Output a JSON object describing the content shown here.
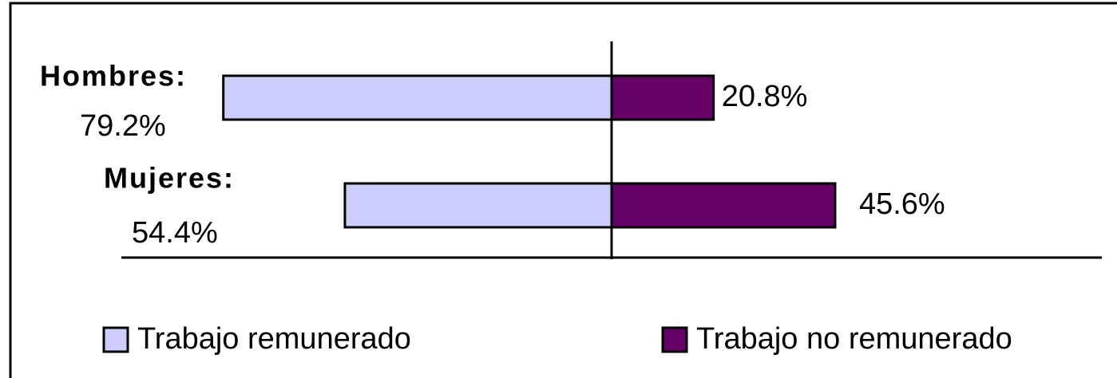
{
  "chart_data": {
    "type": "bar",
    "categories": [
      "Hombres:",
      "Mujeres:"
    ],
    "series": [
      {
        "name": "Trabajo remunerado",
        "color": "#ccccff",
        "values": [
          79.2,
          54.4
        ],
        "value_labels": [
          "79.2%",
          "54.4%"
        ]
      },
      {
        "name": "Trabajo no remunerado",
        "color": "#660066",
        "values": [
          20.8,
          45.6
        ],
        "value_labels": [
          "20.8%",
          "45.6%"
        ]
      }
    ],
    "xlim": [
      -100,
      100
    ]
  }
}
